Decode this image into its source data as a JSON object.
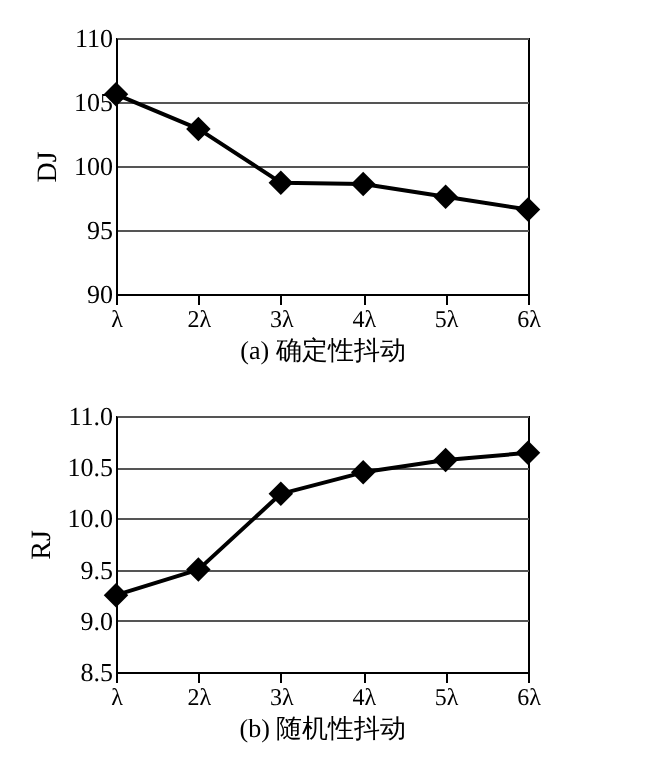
{
  "chart_data": [
    {
      "type": "line",
      "categories": [
        "λ",
        "2λ",
        "3λ",
        "4λ",
        "5λ",
        "6λ"
      ],
      "values": [
        105.6,
        102.9,
        98.7,
        98.6,
        97.6,
        96.6
      ],
      "color": "#000000",
      "ylabel": "DJ",
      "xlabel": "(a) 确定性抖动",
      "ylim": [
        90,
        110
      ],
      "yticks": [
        90,
        95,
        100,
        105,
        110
      ],
      "grid": "y",
      "marker": "diamond",
      "line_style": "solid"
    },
    {
      "type": "line",
      "categories": [
        "λ",
        "2λ",
        "3λ",
        "4λ",
        "5λ",
        "6λ"
      ],
      "values": [
        9.25,
        9.5,
        10.24,
        10.45,
        10.57,
        10.64
      ],
      "color": "#000000",
      "ylabel": "RJ",
      "xlabel": "(b) 随机性抖动",
      "ylim": [
        8.5,
        11.0
      ],
      "yticks": [
        {
          "value": 8.5,
          "label": "8.5"
        },
        {
          "value": 9.0,
          "label": "9.0"
        },
        {
          "value": 9.5,
          "label": "9.5"
        },
        {
          "value": 10.0,
          "label": "10.0"
        },
        {
          "value": 10.5,
          "label": "10.5"
        },
        {
          "value": 11.0,
          "label": "11.0"
        }
      ],
      "grid": "y",
      "marker": "diamond",
      "line_style": "solid"
    }
  ]
}
